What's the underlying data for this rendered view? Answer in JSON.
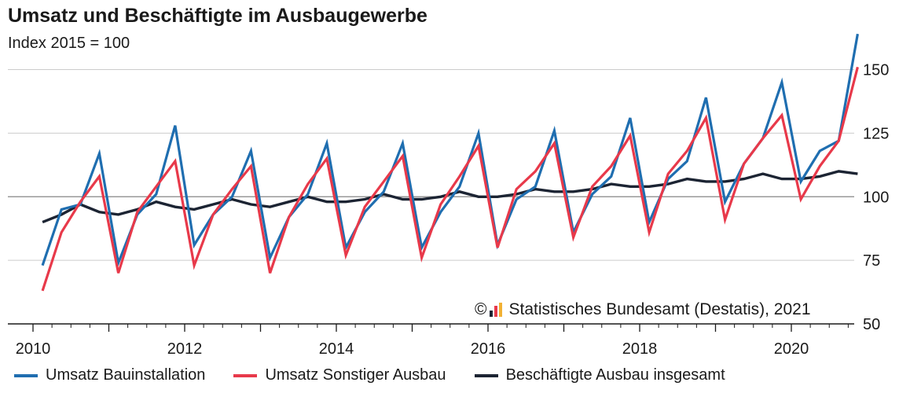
{
  "colors": {
    "umsatz_bauinstallation": "#1f6eb0",
    "umsatz_sonstiger_ausbau": "#e8394a",
    "beschaeftigte": "#1c2433",
    "grid": "#cccccc",
    "baseline": "#999999"
  },
  "source": {
    "copyright": "©",
    "text": "Statistisches Bundesamt (Destatis), 2021",
    "logo_icon": "destatis-logo-icon"
  },
  "chart_data": {
    "type": "line",
    "title": "Umsatz und Beschäftigte im Ausbaugewerbe",
    "subtitle": "Index 2015 = 100",
    "xlabel": "",
    "ylabel": "",
    "xlim": [
      2010,
      2021
    ],
    "ylim": [
      50,
      165
    ],
    "yticks": [
      50,
      75,
      100,
      125,
      150
    ],
    "xticks": [
      2010,
      2012,
      2014,
      2016,
      2018,
      2020
    ],
    "grid": true,
    "legend_position": "bottom",
    "x_note": "quarterly values, 2010 Q1 - 2020 Q4",
    "series": [
      {
        "name": "Umsatz Bauinstallation",
        "color": "#1f6eb0",
        "values": [
          73,
          95,
          97,
          117,
          74,
          93,
          101,
          128,
          81,
          93,
          100,
          118,
          76,
          92,
          101,
          121,
          80,
          94,
          102,
          121,
          80,
          94,
          104,
          125,
          81,
          99,
          104,
          126,
          86,
          101,
          108,
          131,
          90,
          107,
          114,
          139,
          98,
          113,
          123,
          145,
          106,
          118,
          122,
          164
        ]
      },
      {
        "name": "Umsatz Sonstiger Ausbau",
        "color": "#e8394a",
        "values": [
          63,
          86,
          98,
          108,
          70,
          94,
          104,
          114,
          73,
          93,
          103,
          112,
          70,
          92,
          105,
          115,
          77,
          96,
          106,
          116,
          76,
          97,
          108,
          120,
          80,
          103,
          110,
          121,
          84,
          104,
          112,
          124,
          86,
          109,
          118,
          131,
          91,
          113,
          123,
          132,
          99,
          112,
          122,
          151
        ]
      },
      {
        "name": "Beschäftigte Ausbau insgesamt",
        "color": "#1c2433",
        "values": [
          90,
          93,
          97,
          94,
          93,
          95,
          98,
          96,
          95,
          97,
          99,
          97,
          96,
          98,
          100,
          98,
          98,
          99,
          101,
          99,
          99,
          100,
          102,
          100,
          100,
          101,
          103,
          102,
          102,
          103,
          105,
          104,
          104,
          105,
          107,
          106,
          106,
          107,
          109,
          107,
          107,
          108,
          110,
          109
        ]
      }
    ]
  }
}
